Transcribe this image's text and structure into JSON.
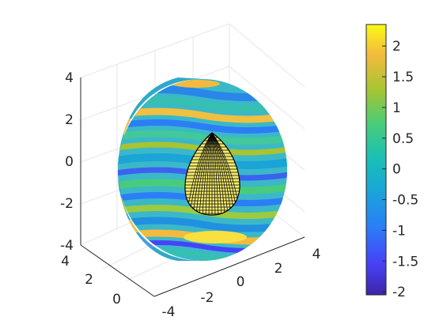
{
  "chart_data": {
    "type": "surface3d",
    "title": "",
    "axes": {
      "x": {
        "label": "",
        "ticks": [
          4,
          2,
          0
        ],
        "range": [
          -1,
          5
        ]
      },
      "y": {
        "label": "",
        "ticks": [
          -4,
          -2,
          0,
          2,
          4
        ],
        "range": [
          -4.5,
          4.5
        ]
      },
      "z": {
        "label": "",
        "ticks": [
          4,
          2,
          0,
          -2,
          -4
        ],
        "range": [
          -4.5,
          4.5
        ]
      }
    },
    "grid": true,
    "objects": [
      {
        "kind": "half-disk-slab",
        "colored_by": "field",
        "radius": 4.2
      },
      {
        "kind": "egg-shaped-wireframe-scatterer",
        "color": "#000000",
        "face": "#f5ed6a"
      }
    ],
    "colorbar": {
      "ticks": [
        2,
        1.5,
        1,
        0.5,
        0,
        -0.5,
        -1,
        -1.5,
        -2
      ],
      "range": [
        -2.05,
        2.35
      ],
      "colormap": "parula",
      "colors": [
        "#3e26a8",
        "#4743f8",
        "#2b7ef7",
        "#1aa4d8",
        "#17bfb7",
        "#48cc7b",
        "#a7c431",
        "#f4ba3e",
        "#f9fa14"
      ]
    }
  }
}
